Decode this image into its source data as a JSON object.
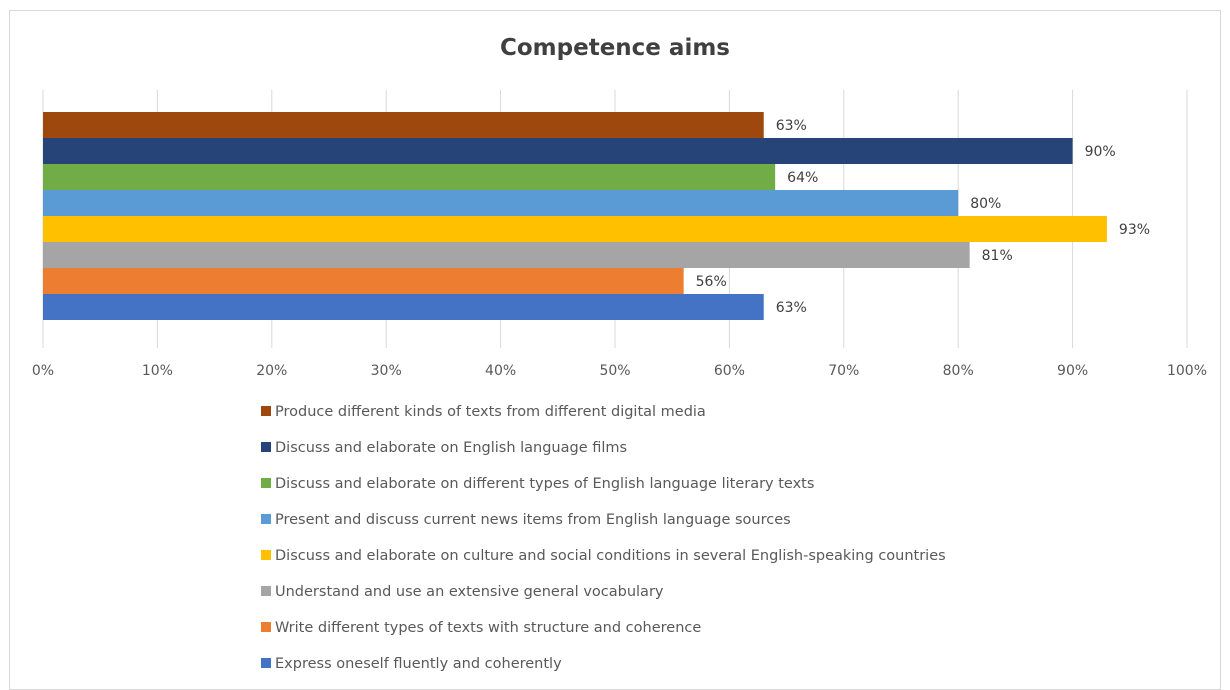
{
  "chart_data": {
    "type": "bar",
    "orientation": "horizontal",
    "title": "Competence aims",
    "xlabel": "",
    "ylabel": "",
    "xlim": [
      0,
      100
    ],
    "x_ticks": [
      "0%",
      "10%",
      "20%",
      "30%",
      "40%",
      "50%",
      "60%",
      "70%",
      "80%",
      "90%",
      "100%"
    ],
    "grid": true,
    "legend_position": "bottom",
    "series": [
      {
        "name": "Produce different kinds of texts from different digital media",
        "value": 63,
        "label": "63%",
        "color": "#9E480E"
      },
      {
        "name": "Discuss and elaborate on English language films",
        "value": 90,
        "label": "90%",
        "color": "#264478"
      },
      {
        "name": "Discuss and elaborate on different types of English language literary texts",
        "value": 64,
        "label": "64%",
        "color": "#70AD47"
      },
      {
        "name": "Present and discuss current news items from English language sources",
        "value": 80,
        "label": "80%",
        "color": "#5B9BD5"
      },
      {
        "name": "Discuss and elaborate on culture and social conditions in several English-speaking countries",
        "value": 93,
        "label": "93%",
        "color": "#FFC000"
      },
      {
        "name": "Understand and use an extensive general vocabulary",
        "value": 81,
        "label": "81%",
        "color": "#A5A5A5"
      },
      {
        "name": "Write different types of texts with structure and coherence",
        "value": 56,
        "label": "56%",
        "color": "#ED7D31"
      },
      {
        "name": "Express oneself fluently and coherently",
        "value": 63,
        "label": "63%",
        "color": "#4472C4"
      }
    ]
  }
}
